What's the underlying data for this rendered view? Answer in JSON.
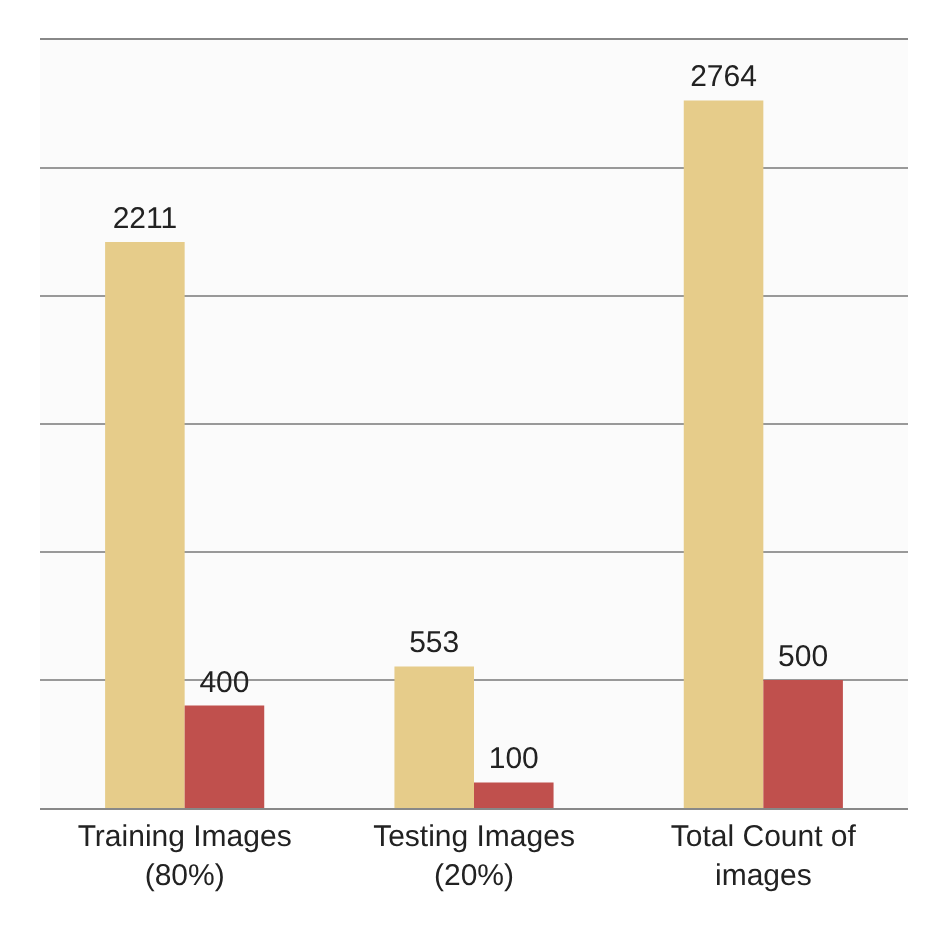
{
  "chart_data": {
    "type": "bar",
    "categories": [
      "Training Images (80%)",
      "Testing Images (20%)",
      "Total Count of images"
    ],
    "series": [
      {
        "color": "#e6cc8a",
        "values": [
          2211,
          553,
          2764
        ]
      },
      {
        "color": "#c0504d",
        "values": [
          400,
          100,
          500
        ]
      }
    ],
    "ylim": [
      0,
      3000
    ],
    "yticks": [
      {
        "value": 0,
        "label": null
      },
      {
        "value": 500,
        "label": null
      },
      {
        "value": 1000,
        "label": null
      },
      {
        "value": 1500,
        "label": null
      },
      {
        "value": 2000,
        "label": null
      },
      {
        "value": 2500,
        "label": null
      },
      {
        "value": 3000,
        "label": null
      }
    ],
    "grid": "y",
    "data_labels": true,
    "tick_labels": "x"
  }
}
